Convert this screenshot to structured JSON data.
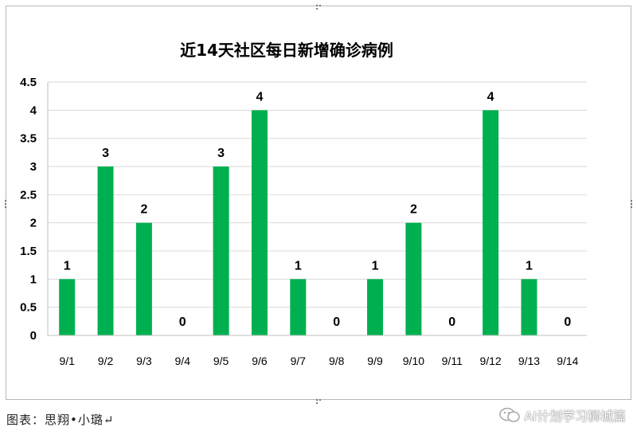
{
  "chart_data": {
    "type": "bar",
    "title": "近14天社区每日新增确诊病例",
    "categories": [
      "9/1",
      "9/2",
      "9/3",
      "9/4",
      "9/5",
      "9/6",
      "9/7",
      "9/8",
      "9/9",
      "9/10",
      "9/11",
      "9/12",
      "9/13",
      "9/14"
    ],
    "values": [
      1,
      3,
      2,
      0,
      3,
      4,
      1,
      0,
      1,
      2,
      0,
      4,
      1,
      0
    ],
    "ylim": [
      0,
      4.5
    ],
    "yticks": [
      "0",
      "0.5",
      "1",
      "1.5",
      "2",
      "2.5",
      "3",
      "3.5",
      "4",
      "4.5"
    ],
    "bar_color": "#00b050",
    "grid": true,
    "legend": "none",
    "data_labels": true
  },
  "caption": "图表：思翔•小璐↵",
  "watermark": "AI计划学习狮城篇"
}
